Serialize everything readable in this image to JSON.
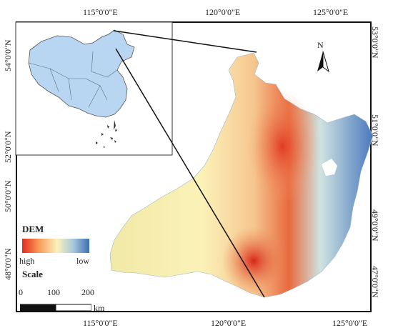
{
  "longitude_labels": [
    "115°0'0\"E",
    "120°0'0\"E",
    "125°0'0\"E"
  ],
  "latitude_labels_left": [
    "54°0'0\"N",
    "52°0'0\"N",
    "50°0'0\"N",
    "48°0'0\"N"
  ],
  "latitude_labels_right": [
    "53°0'0\"N",
    "51°0'0\"N",
    "49°0'0\"N",
    "47°0'0\"N"
  ],
  "north_arrow": {
    "label": "N"
  },
  "legend": {
    "title": "DEM",
    "high_label": "high",
    "low_label": "low",
    "colors": {
      "high": "#e52a1e",
      "mid": "#fbf2b8",
      "low": "#3f6db5"
    }
  },
  "scale": {
    "title": "Scale",
    "ticks": [
      "0",
      "100",
      "200"
    ],
    "unit": "km"
  },
  "inset": {
    "fill_color": "#b8d6f2",
    "outline_color": "#555555"
  }
}
